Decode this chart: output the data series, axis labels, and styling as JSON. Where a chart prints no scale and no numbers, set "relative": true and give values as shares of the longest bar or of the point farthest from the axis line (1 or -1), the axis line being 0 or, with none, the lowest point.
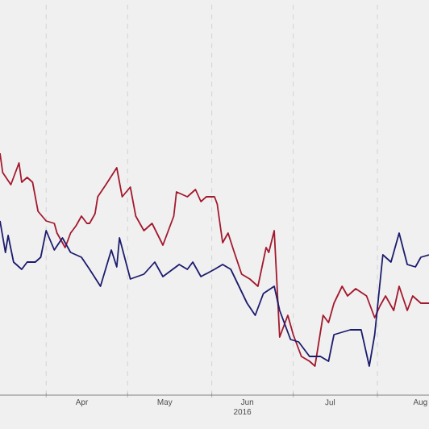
{
  "chart_data": {
    "type": "line",
    "relative": true,
    "xlabel": "2016",
    "grid": "x",
    "marker": "none",
    "line_style": "solid",
    "xlim": [
      "2016-03-15",
      "2016-08-20"
    ],
    "xticks": [
      {
        "value": "2016-04-01",
        "label": null
      },
      {
        "value": "2016-04-15",
        "label": "Apr"
      },
      {
        "value": "2016-05-01",
        "label": null
      },
      {
        "value": "2016-05-16",
        "label": "May"
      },
      {
        "value": "2016-06-01",
        "label": null
      },
      {
        "value": "2016-06-15",
        "label": "Jun"
      },
      {
        "value": "2016-07-01",
        "label": null
      },
      {
        "value": "2016-07-15",
        "label": "Jul"
      },
      {
        "value": "2016-08-01",
        "label": null
      },
      {
        "value": "2016-08-18",
        "label": "Aug"
      }
    ],
    "series": [
      {
        "color": "#a3192e",
        "x": [
          "2016-03-15",
          "2016-03-16",
          "2016-03-19",
          "2016-03-22",
          "2016-03-23",
          "2016-03-25",
          "2016-03-27",
          "2016-03-29",
          "2016-04-01",
          "2016-04-04",
          "2016-04-05",
          "2016-04-08",
          "2016-04-10",
          "2016-04-12",
          "2016-04-14",
          "2016-04-16",
          "2016-04-17",
          "2016-04-19",
          "2016-04-20",
          "2016-04-23",
          "2016-04-27",
          "2016-04-29",
          "2016-05-02",
          "2016-05-04",
          "2016-05-07",
          "2016-05-10",
          "2016-05-14",
          "2016-05-18",
          "2016-05-19",
          "2016-05-23",
          "2016-05-26",
          "2016-05-28",
          "2016-05-30",
          "2016-06-02",
          "2016-06-03",
          "2016-06-05",
          "2016-06-07",
          "2016-06-09",
          "2016-06-12",
          "2016-06-15",
          "2016-06-18",
          "2016-06-21",
          "2016-06-22",
          "2016-06-24",
          "2016-06-26",
          "2016-06-29",
          "2016-07-01",
          "2016-07-04",
          "2016-07-07",
          "2016-07-09",
          "2016-07-12",
          "2016-07-14",
          "2016-07-16",
          "2016-07-19",
          "2016-07-21",
          "2016-07-24",
          "2016-07-28",
          "2016-07-31",
          "2016-08-02",
          "2016-08-04",
          "2016-08-07",
          "2016-08-09",
          "2016-08-12",
          "2016-08-14",
          "2016-08-17",
          "2016-08-20"
        ],
        "values": [
          1.0,
          0.92,
          0.87,
          0.96,
          0.88,
          0.9,
          0.88,
          0.76,
          0.72,
          0.71,
          0.67,
          0.61,
          0.67,
          0.7,
          0.74,
          0.71,
          0.71,
          0.75,
          0.82,
          0.87,
          0.94,
          0.82,
          0.86,
          0.74,
          0.68,
          0.71,
          0.62,
          0.74,
          0.84,
          0.82,
          0.85,
          0.8,
          0.82,
          0.82,
          0.79,
          0.63,
          0.67,
          0.6,
          0.5,
          0.48,
          0.45,
          0.61,
          0.59,
          0.68,
          0.24,
          0.33,
          0.25,
          0.16,
          0.14,
          0.12,
          0.33,
          0.3,
          0.38,
          0.45,
          0.41,
          0.44,
          0.41,
          0.32,
          0.37,
          0.41,
          0.35,
          0.45,
          0.35,
          0.41,
          0.38,
          0.38
        ]
      },
      {
        "color": "#1c1c6e",
        "x": [
          "2016-03-15",
          "2016-03-17",
          "2016-03-18",
          "2016-03-20",
          "2016-03-23",
          "2016-03-25",
          "2016-03-28",
          "2016-03-30",
          "2016-04-01",
          "2016-04-04",
          "2016-04-07",
          "2016-04-10",
          "2016-04-14",
          "2016-04-17",
          "2016-04-21",
          "2016-04-25",
          "2016-04-27",
          "2016-04-28",
          "2016-05-02",
          "2016-05-07",
          "2016-05-11",
          "2016-05-14",
          "2016-05-20",
          "2016-05-23",
          "2016-05-25",
          "2016-05-28",
          "2016-06-02",
          "2016-06-05",
          "2016-06-08",
          "2016-06-11",
          "2016-06-14",
          "2016-06-17",
          "2016-06-20",
          "2016-06-24",
          "2016-06-26",
          "2016-06-30",
          "2016-07-03",
          "2016-07-07",
          "2016-07-11",
          "2016-07-14",
          "2016-07-16",
          "2016-07-22",
          "2016-07-26",
          "2016-07-29",
          "2016-07-31",
          "2016-08-03",
          "2016-08-06",
          "2016-08-09",
          "2016-08-12",
          "2016-08-15",
          "2016-08-17",
          "2016-08-20"
        ],
        "values": [
          0.72,
          0.59,
          0.66,
          0.55,
          0.52,
          0.55,
          0.55,
          0.57,
          0.68,
          0.6,
          0.65,
          0.59,
          0.57,
          0.52,
          0.45,
          0.6,
          0.53,
          0.65,
          0.48,
          0.5,
          0.55,
          0.49,
          0.54,
          0.52,
          0.55,
          0.49,
          0.52,
          0.54,
          0.52,
          0.45,
          0.38,
          0.33,
          0.42,
          0.45,
          0.35,
          0.23,
          0.22,
          0.16,
          0.16,
          0.14,
          0.25,
          0.27,
          0.27,
          0.12,
          0.25,
          0.58,
          0.55,
          0.67,
          0.54,
          0.53,
          0.57,
          0.58
        ]
      }
    ]
  }
}
